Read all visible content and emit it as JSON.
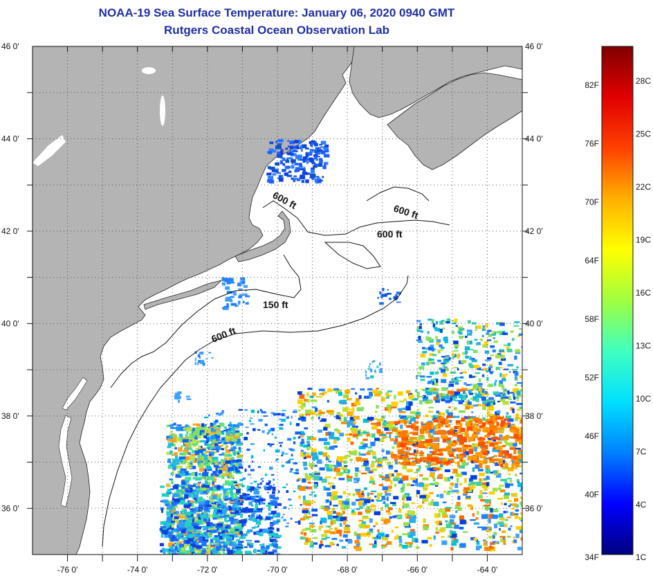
{
  "header": {
    "title": "NOAA-19 Sea Surface Temperature:  January 06, 2020 0940 GMT",
    "subtitle": "Rutgers Coastal Ocean Observation Lab"
  },
  "map": {
    "lat_ticks": [
      {
        "value": 46,
        "label": "46 0'"
      },
      {
        "value": 44,
        "label": "44 0'"
      },
      {
        "value": 42,
        "label": "42 0'"
      },
      {
        "value": 40,
        "label": "40 0'"
      },
      {
        "value": 38,
        "label": "38 0'"
      },
      {
        "value": 36,
        "label": "36 0'"
      }
    ],
    "lon_ticks": [
      {
        "value": -76,
        "label": "-76 0'"
      },
      {
        "value": -74,
        "label": "-74 0'"
      },
      {
        "value": -72,
        "label": "-72 0'"
      },
      {
        "value": -70,
        "label": "-70 0'"
      },
      {
        "value": -68,
        "label": "-68 0'"
      },
      {
        "value": -66,
        "label": "-66 0'"
      },
      {
        "value": -64,
        "label": "-64 0'"
      }
    ],
    "extent": {
      "lon_min": -77,
      "lon_max": -63,
      "lat_min": 35,
      "lat_max": 46
    },
    "contour_labels": [
      "600 ft",
      "600 ft",
      "600 ft",
      "150 ft",
      "600 ft"
    ],
    "land_color": "#b4b4b4",
    "ocean_color": "#ffffff"
  },
  "colorbar": {
    "f_labels": [
      "82F",
      "76F",
      "70F",
      "64F",
      "58F",
      "52F",
      "46F",
      "40F",
      "34F"
    ],
    "c_labels": [
      "28C",
      "25C",
      "22C",
      "19C",
      "16C",
      "13C",
      "10C",
      "7C",
      "4C",
      "1C"
    ],
    "colors": [
      "#000080",
      "#0000ff",
      "#0080ff",
      "#00e0ff",
      "#40ffc0",
      "#a0ff40",
      "#ffff00",
      "#ffb000",
      "#ff4000",
      "#e00000",
      "#800000"
    ]
  }
}
